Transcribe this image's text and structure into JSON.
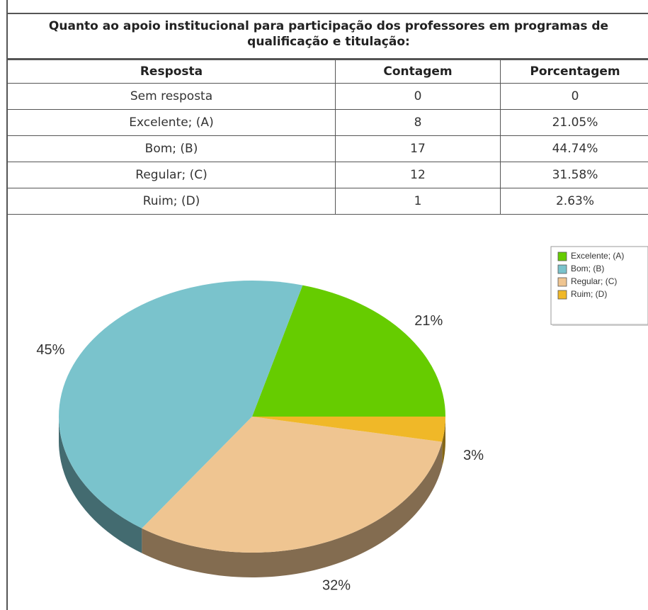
{
  "table": {
    "title": "Quanto ao apoio institucional para participação dos professores em programas de qualificação e titulação:",
    "headers": [
      "Resposta",
      "Contagem",
      "Porcentagem"
    ],
    "rows": [
      [
        "Sem resposta",
        "0",
        "0"
      ],
      [
        "Excelente; (A)",
        "8",
        "21.05%"
      ],
      [
        "Bom; (B)",
        "17",
        "44.74%"
      ],
      [
        "Regular; (C)",
        "12",
        "31.58%"
      ],
      [
        "Ruim; (D)",
        "1",
        "2.63%"
      ]
    ]
  },
  "chart_data": {
    "type": "pie",
    "categories": [
      "Excelente; (A)",
      "Bom; (B)",
      "Regular; (C)",
      "Ruim; (D)"
    ],
    "values": [
      21,
      45,
      32,
      3
    ],
    "value_labels": [
      "21%",
      "45%",
      "32%",
      "3%"
    ],
    "colors": [
      "#66cc00",
      "#7ac3cc",
      "#efc591",
      "#f0b828"
    ],
    "legend": "top-right"
  }
}
